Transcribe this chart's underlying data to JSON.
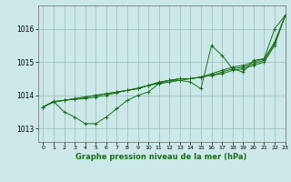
{
  "title": "Graphe pression niveau de la mer (hPa)",
  "bg_color": "#cce8e8",
  "grid_color": "#99bbbb",
  "line_color": "#1a6e1a",
  "xlim": [
    -0.5,
    23
  ],
  "ylim": [
    1012.6,
    1016.7
  ],
  "yticks": [
    1013,
    1014,
    1015,
    1016
  ],
  "xticks": [
    0,
    1,
    2,
    3,
    4,
    5,
    6,
    7,
    8,
    9,
    10,
    11,
    12,
    13,
    14,
    15,
    16,
    17,
    18,
    19,
    20,
    21,
    22,
    23
  ],
  "series": [
    [
      1013.65,
      1013.8,
      1013.85,
      1013.9,
      1013.95,
      1014.0,
      1014.05,
      1014.1,
      1014.15,
      1014.2,
      1014.3,
      1014.35,
      1014.4,
      1014.45,
      1014.5,
      1014.55,
      1014.6,
      1014.65,
      1014.75,
      1014.8,
      1014.9,
      1015.0,
      1015.5,
      1016.4
    ],
    [
      1013.65,
      1013.8,
      1013.85,
      1013.9,
      1013.95,
      1014.0,
      1014.05,
      1014.1,
      1014.15,
      1014.2,
      1014.3,
      1014.4,
      1014.45,
      1014.5,
      1014.5,
      1014.55,
      1014.6,
      1014.7,
      1014.8,
      1014.85,
      1014.95,
      1015.05,
      1015.55,
      1016.4
    ],
    [
      1013.65,
      1013.82,
      1013.85,
      1013.88,
      1013.9,
      1013.95,
      1014.0,
      1014.08,
      1014.15,
      1014.22,
      1014.3,
      1014.38,
      1014.45,
      1014.5,
      1014.5,
      1014.55,
      1014.65,
      1014.75,
      1014.85,
      1014.9,
      1015.0,
      1015.1,
      1015.6,
      1016.4
    ],
    [
      1013.65,
      1013.82,
      1013.5,
      1013.35,
      1013.15,
      1013.15,
      1013.35,
      1013.6,
      1013.85,
      1014.0,
      1014.1,
      1014.35,
      1014.45,
      1014.45,
      1014.4,
      1014.2,
      1015.5,
      1015.2,
      1014.8,
      1014.7,
      1015.05,
      1015.1,
      1016.0,
      1016.4
    ]
  ]
}
